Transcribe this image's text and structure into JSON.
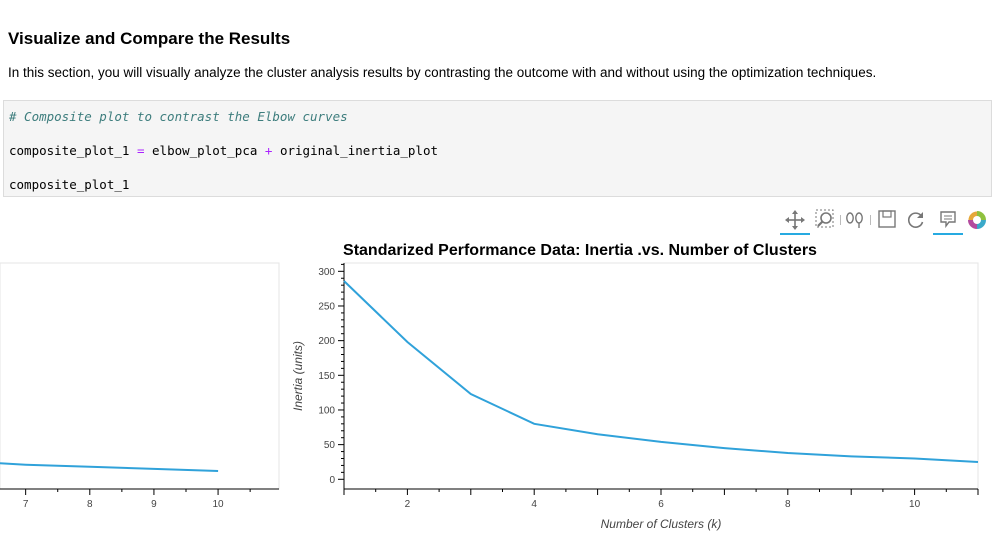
{
  "section": {
    "heading": "Visualize and Compare the Results",
    "intro": "In this section, you will visually analyze the cluster analysis results by contrasting the outcome with and without using the optimization techniques."
  },
  "code_cell": {
    "comment": "# Composite plot to contrast the Elbow curves",
    "line2_var": "composite_plot_1",
    "line2_eq": "=",
    "line2_a": "elbow_plot_pca",
    "line2_op": "+",
    "line2_b": "original_inertia_plot",
    "line3": "composite_plot_1"
  },
  "toolbar": {
    "tools": [
      {
        "name": "pan-tool-icon",
        "active": true
      },
      {
        "name": "box-zoom-tool-icon",
        "active": false
      },
      {
        "name": "wheel-zoom-tool-icon",
        "active": false
      },
      {
        "name": "save-tool-icon",
        "active": false
      },
      {
        "name": "reset-tool-icon",
        "active": false
      },
      {
        "name": "hover-tool-icon",
        "active": true
      },
      {
        "name": "bokeh-logo-icon",
        "active": false
      }
    ]
  },
  "chart_data": [
    {
      "type": "line",
      "title": "",
      "x": [
        6.6,
        7,
        8,
        9,
        10
      ],
      "y": [
        23,
        21,
        18,
        15,
        12
      ],
      "xlim": [
        6.6,
        10.95
      ],
      "ylim": [
        -14,
        312
      ],
      "xticks": [
        "7",
        "8",
        "9",
        "10"
      ],
      "xlabel": "",
      "ylabel": "",
      "color": "#30a2da"
    },
    {
      "type": "line",
      "title": "Standarized Performance Data: Inertia .vs. Number of Clusters",
      "x": [
        1,
        2,
        3,
        4,
        5,
        6,
        7,
        8,
        9,
        10,
        11
      ],
      "y": [
        286,
        198,
        123,
        80,
        65,
        54,
        45,
        38,
        33,
        30,
        25
      ],
      "xlim": [
        1,
        11
      ],
      "ylim": [
        -14,
        312
      ],
      "xticks": [
        "2",
        "4",
        "6",
        "8",
        "10"
      ],
      "yticks": [
        "0",
        "50",
        "100",
        "150",
        "200",
        "250",
        "300"
      ],
      "xlabel": "Number of Clusters (k)",
      "ylabel": "Inertia (units)",
      "color": "#30a2da"
    }
  ]
}
